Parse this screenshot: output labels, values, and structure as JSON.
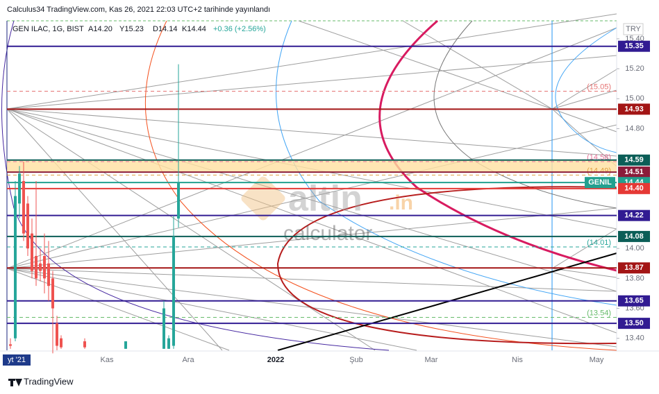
{
  "header": "Calculus34 TradingView.com, Kas 26, 2021 22:03 UTC+2 tarihinde yayınlandı",
  "footer": "TradingView",
  "watermark": {
    "brand": "altin",
    "suffix": ".in",
    "sub": "calculator"
  },
  "chart_data": {
    "type": "candlestick",
    "title": "GEN ILAC, 1G, BIST",
    "legend_values": [
      "A14.20",
      "Y15.23",
      "D14.14",
      "K14.44",
      "+0.36 (+2.56%)"
    ],
    "currency": "TRY",
    "symbol_tag": "GENIL",
    "x_labels": [
      "yt '21",
      "Kas",
      "Ara",
      "2022",
      "Şub",
      "Mar",
      "Nis",
      "May"
    ],
    "ylim": [
      13.32,
      15.52
    ],
    "yticks": [
      {
        "value": 13.4,
        "label": "13.40"
      },
      {
        "value": 13.6,
        "label": "13.60"
      },
      {
        "value": 13.8,
        "label": "13.80"
      },
      {
        "value": 14.0,
        "label": "14.00"
      },
      {
        "value": 14.8,
        "label": "14.80"
      },
      {
        "value": 15.0,
        "label": "15.00"
      },
      {
        "value": 15.2,
        "label": "15.20"
      },
      {
        "value": 15.4,
        "label": "15.40"
      }
    ],
    "levels": [
      {
        "value": 15.35,
        "label": "15.35",
        "color": "#311b92"
      },
      {
        "value": 14.93,
        "label": "14.93",
        "color": "#a31515"
      },
      {
        "value": 14.59,
        "label": "14.59",
        "color": "#0b5e57"
      },
      {
        "value": 14.51,
        "label": "14.51",
        "color": "#8b1c3a"
      },
      {
        "value": 14.44,
        "label": "14.44",
        "color": "#22a08f"
      },
      {
        "value": 14.4,
        "label": "14.40",
        "color": "#e53935"
      },
      {
        "value": 14.22,
        "label": "14.22",
        "color": "#311b92"
      },
      {
        "value": 14.08,
        "label": "14.08",
        "color": "#0b5e57"
      },
      {
        "value": 13.87,
        "label": "13.87",
        "color": "#a31515"
      },
      {
        "value": 13.65,
        "label": "13.65",
        "color": "#311b92"
      },
      {
        "value": 13.5,
        "label": "13.50",
        "color": "#311b92"
      }
    ],
    "dashed_levels": [
      {
        "value": 15.05,
        "label": "(15.05)",
        "color": "#e57373"
      },
      {
        "value": 14.58,
        "label": "(14.58)",
        "color": "#e57398"
      },
      {
        "value": 14.49,
        "label": "(14.49)",
        "color": "#e0a040"
      },
      {
        "value": 14.01,
        "label": "(14.01)",
        "color": "#26a69a"
      },
      {
        "value": 13.54,
        "label": "(13.54)",
        "color": "#66bb6a"
      }
    ],
    "band": [
      14.51,
      14.59
    ],
    "up_color": "#26a69a",
    "down_color": "#ef5350",
    "open": [
      13.36,
      13.4,
      14.3,
      14.45,
      14.3,
      14.1,
      13.95,
      13.9,
      13.95,
      13.9,
      13.8,
      13.5,
      13.4,
      13.38,
      13.33,
      13.33,
      13.33,
      13.35,
      14.2
    ],
    "high": [
      13.4,
      14.45,
      14.55,
      14.58,
      14.35,
      14.2,
      14.45,
      14.0,
      14.1,
      14.05,
      13.85,
      13.55,
      13.42,
      13.4,
      13.38,
      13.65,
      13.42,
      14.22,
      15.23
    ],
    "low": [
      13.33,
      13.38,
      14.2,
      14.05,
      13.95,
      13.8,
      13.75,
      13.78,
      13.7,
      13.65,
      13.3,
      13.32,
      13.33,
      13.33,
      13.33,
      13.33,
      13.33,
      13.33,
      14.14
    ],
    "close": [
      13.35,
      14.35,
      14.5,
      14.1,
      14.0,
      13.85,
      13.8,
      13.85,
      13.8,
      13.75,
      13.6,
      13.35,
      13.34,
      13.34,
      13.38,
      13.6,
      13.4,
      14.08,
      14.44
    ]
  }
}
